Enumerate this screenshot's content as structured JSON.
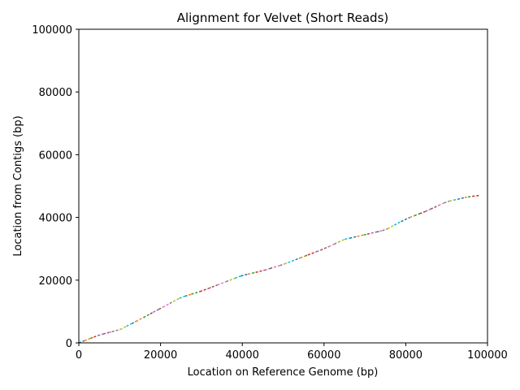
{
  "chart_data": {
    "type": "line",
    "title": "Alignment for Velvet (Short Reads)",
    "xlabel": "Location on Reference Genome (bp)",
    "ylabel": "Location from Contigs (bp)",
    "xlim": [
      0,
      100000
    ],
    "ylim": [
      0,
      100000
    ],
    "x_ticks": [
      "0",
      "20000",
      "40000",
      "60000",
      "80000",
      "100000"
    ],
    "y_ticks": [
      "0",
      "20000",
      "40000",
      "60000",
      "80000",
      "100000"
    ],
    "grid": false,
    "line_style": "dashed",
    "palette": [
      "#1f77b4",
      "#ff7f0e",
      "#2ca02c",
      "#d62728",
      "#9467bd",
      "#8c564b",
      "#e377c2",
      "#7f7f7f",
      "#bcbd22",
      "#17becf"
    ],
    "anchor_points": [
      [
        0,
        0
      ],
      [
        5000,
        2500
      ],
      [
        10000,
        4200
      ],
      [
        15000,
        7500
      ],
      [
        20000,
        11000
      ],
      [
        25000,
        14500
      ],
      [
        30000,
        16500
      ],
      [
        35000,
        19000
      ],
      [
        40000,
        21500
      ],
      [
        45000,
        23000
      ],
      [
        50000,
        25000
      ],
      [
        55000,
        27500
      ],
      [
        60000,
        30000
      ],
      [
        65000,
        33000
      ],
      [
        70000,
        34500
      ],
      [
        75000,
        36000
      ],
      [
        80000,
        39500
      ],
      [
        85000,
        42000
      ],
      [
        90000,
        45000
      ],
      [
        95000,
        46500
      ],
      [
        98000,
        47000
      ]
    ]
  }
}
